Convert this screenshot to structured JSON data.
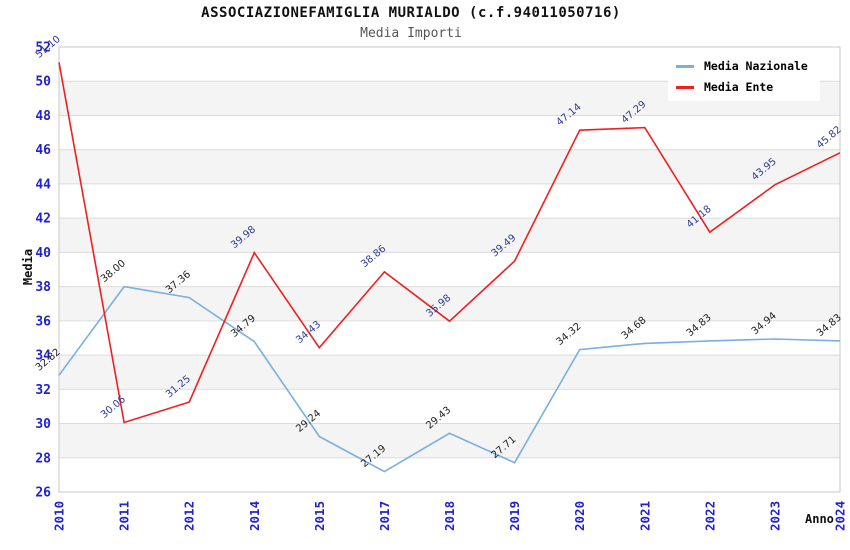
{
  "chart_data": {
    "type": "line",
    "title": "ASSOCIAZIONEFAMIGLIA MURIALDO (c.f.94011050716)",
    "subtitle": "Media Importi",
    "xlabel": "Anno",
    "ylabel": "Media",
    "categories": [
      "2010",
      "2011",
      "2012",
      "2014",
      "2015",
      "2017",
      "2018",
      "2019",
      "2020",
      "2021",
      "2022",
      "2023",
      "2024"
    ],
    "series": [
      {
        "name": "Media Nazionale",
        "color": "#79afe1",
        "label_color": "#222222",
        "values": [
          32.82,
          38.0,
          37.36,
          34.79,
          29.24,
          27.19,
          29.43,
          27.71,
          34.32,
          34.68,
          34.83,
          34.94,
          34.83
        ]
      },
      {
        "name": "Media Ente",
        "color": "#ee2020",
        "label_color": "#2f3a96",
        "values": [
          51.1,
          30.06,
          31.25,
          39.98,
          34.43,
          38.86,
          35.98,
          39.49,
          47.14,
          47.29,
          41.18,
          43.95,
          45.82
        ]
      }
    ],
    "ylim": [
      26,
      52
    ],
    "ytick_step": 2,
    "grid": "horizontal gridlines every 2 units with alternating gray bands",
    "legend_position": "top-right",
    "colors": {
      "tick_label": "#2222cc",
      "band": "#f4f4f4",
      "gridline": "#dcdcdc",
      "plot_border": "#c9c9c9",
      "title_text": "#111111",
      "subtitle_text": "#555555"
    }
  }
}
